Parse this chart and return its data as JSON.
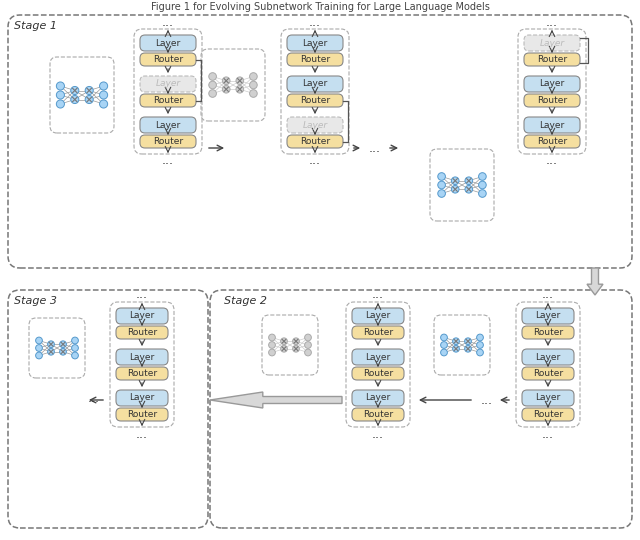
{
  "title": "Figure 1 for Evolving Subnetwork Training for Large Language Models",
  "bg_color": "#ffffff",
  "stage1_label": "Stage 1",
  "stage2_label": "Stage 2",
  "stage3_label": "Stage 3",
  "layer_color": "#c5dff0",
  "router_color": "#f5dfa0",
  "inactive_layer_color": "#e8e8e8",
  "inactive_layer_text_color": "#bbbbbb",
  "box_border_color": "#888888",
  "arrow_color": "#444444",
  "node_color": "#a8d4f5",
  "node_edge_color": "#5599cc",
  "line_color": "#aaaaaa"
}
